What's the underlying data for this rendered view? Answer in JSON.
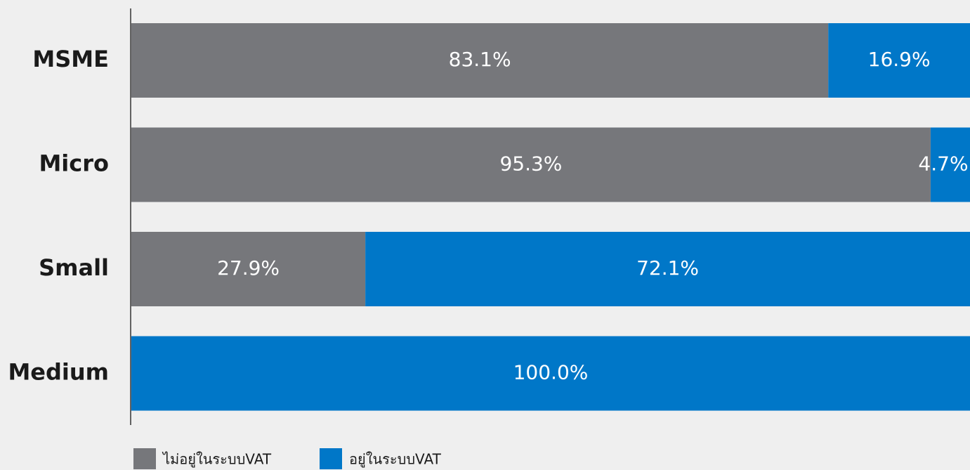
{
  "chart_data": {
    "type": "stacked-barh",
    "categories": [
      "MSME",
      "Micro",
      "Small",
      "Medium"
    ],
    "series": [
      {
        "name": "ไม่อยู่ในระบบVAT",
        "color": "#76777b",
        "values": [
          83.1,
          95.3,
          27.9,
          0
        ],
        "value_labels": [
          "83.1%",
          "95.3%",
          "27.9%",
          null
        ]
      },
      {
        "name": "อยู่ในระบบVAT",
        "color": "#0077c8",
        "values": [
          16.9,
          4.7,
          72.1,
          100.0
        ],
        "value_labels": [
          "16.9%",
          "4.7%",
          "72.1%",
          "100.0%"
        ]
      }
    ],
    "xlim": [
      0,
      100
    ]
  }
}
